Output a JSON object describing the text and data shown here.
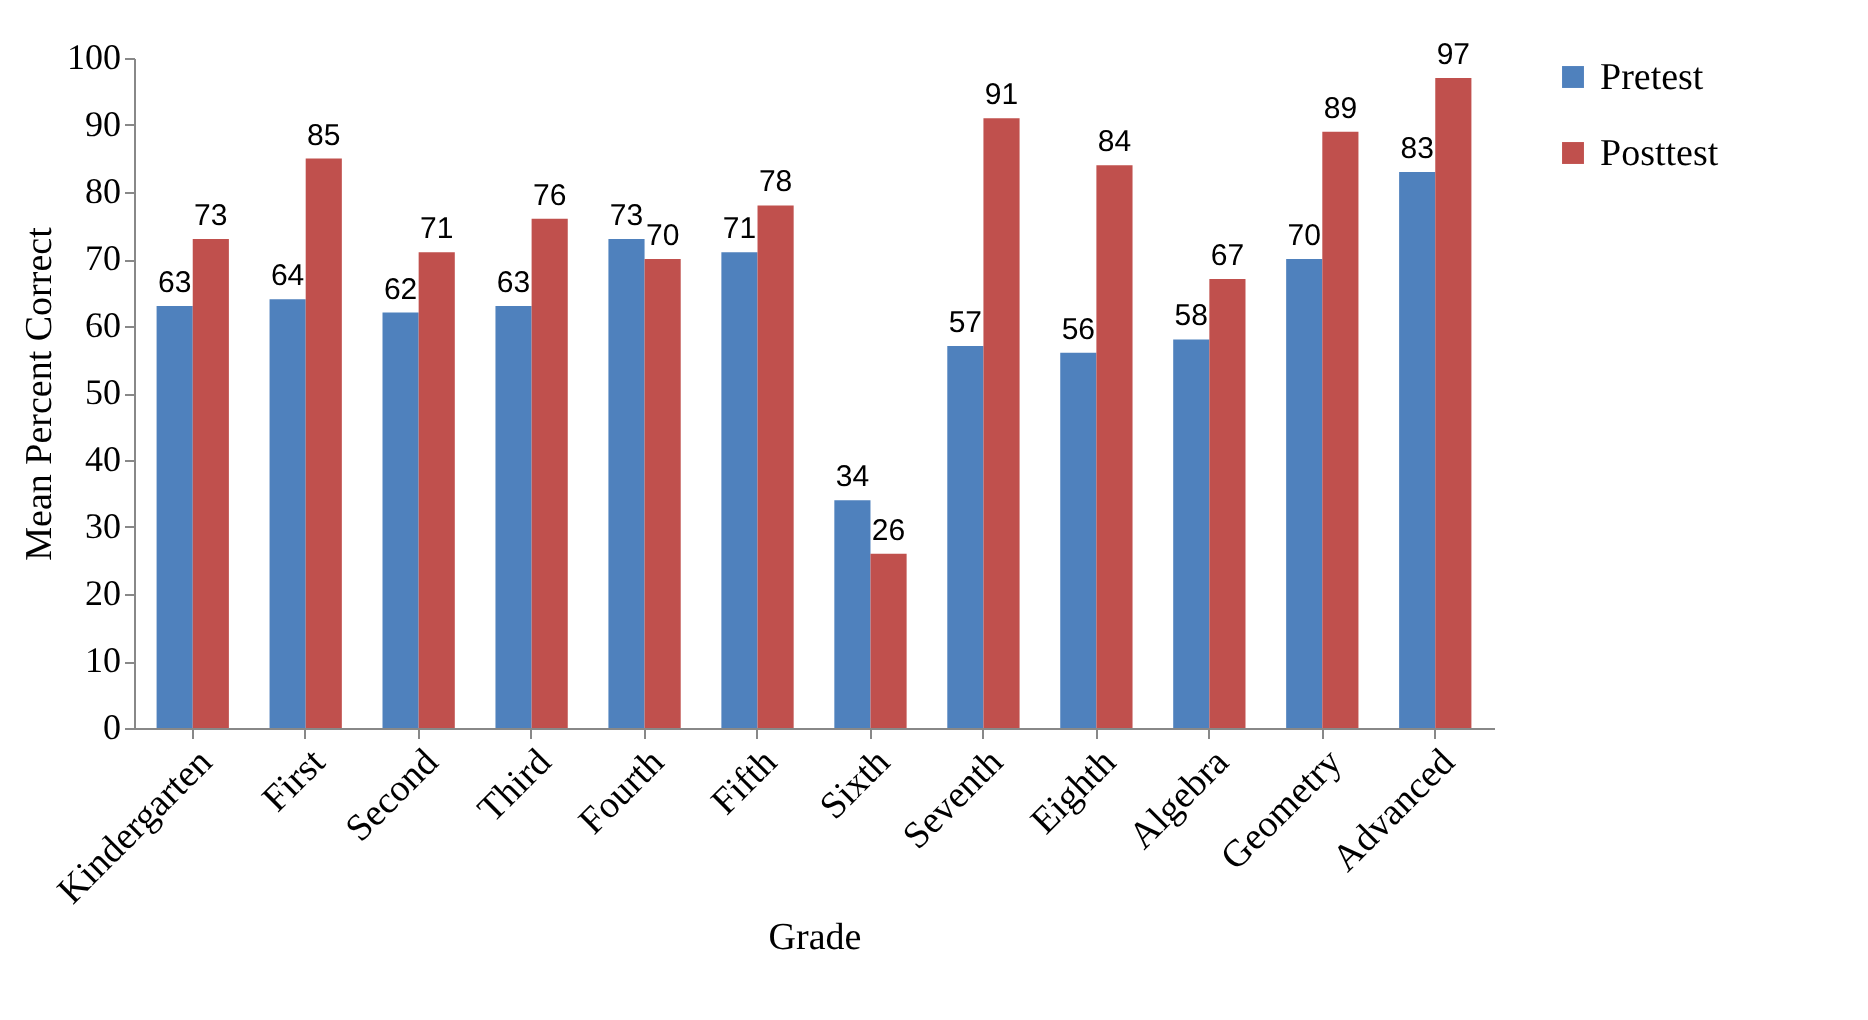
{
  "chart_data": {
    "type": "bar",
    "xlabel": "Grade",
    "ylabel": "Mean Percent Correct",
    "categories": [
      "Kindergarten",
      "First",
      "Second",
      "Third",
      "Fourth",
      "Fifth",
      "Sixth",
      "Seventh",
      "Eighth",
      "Algebra",
      "Geometry",
      "Advanced"
    ],
    "series": [
      {
        "name": "Pretest",
        "color": "#4f81bd",
        "values": [
          63,
          64,
          62,
          63,
          73,
          71,
          34,
          57,
          56,
          58,
          70,
          83
        ]
      },
      {
        "name": "Posttest",
        "color": "#c0504d",
        "values": [
          73,
          85,
          71,
          76,
          70,
          78,
          26,
          91,
          84,
          67,
          89,
          97
        ]
      }
    ],
    "ylim": [
      0,
      100
    ],
    "yticks": [
      0,
      10,
      20,
      30,
      40,
      50,
      60,
      70,
      80,
      90,
      100
    ],
    "data_labels": true,
    "legend": "right",
    "grid": false
  }
}
